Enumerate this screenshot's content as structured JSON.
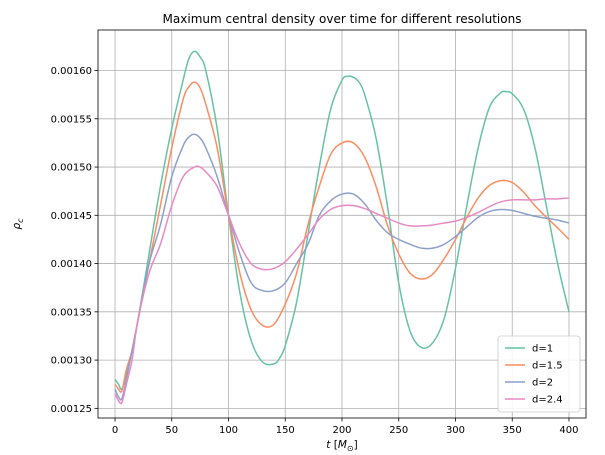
{
  "chart_data": {
    "type": "line",
    "title": "Maximum central density over time for different resolutions",
    "xlabel": "t [M⊙]",
    "xlabel_parts": {
      "var": "t",
      "unit_open": " [",
      "unit": "M",
      "unit_sub": "⊙",
      "unit_close": "]"
    },
    "ylabel": "ρc",
    "ylabel_parts": {
      "var": "ρ",
      "sub": "c"
    },
    "xlim": [
      -15,
      415
    ],
    "ylim": [
      0.00124,
      0.001642
    ],
    "xticks": [
      0,
      50,
      100,
      150,
      200,
      250,
      300,
      350,
      400
    ],
    "xtick_labels": [
      "0",
      "50",
      "100",
      "150",
      "200",
      "250",
      "300",
      "350",
      "400"
    ],
    "yticks": [
      0.00125,
      0.0013,
      0.00135,
      0.0014,
      0.00145,
      0.0015,
      0.00155,
      0.0016
    ],
    "ytick_labels": [
      "0.00125",
      "0.00130",
      "0.00135",
      "0.00140",
      "0.00145",
      "0.00150",
      "0.00155",
      "0.00160"
    ],
    "grid": true,
    "legend_position": "bottom-right",
    "series": [
      {
        "name": "d=1",
        "color": "#66c2a5",
        "x": [
          0,
          3,
          6,
          10,
          15,
          20,
          30,
          40,
          50,
          60,
          65,
          70,
          75,
          80,
          90,
          100,
          110,
          120,
          130,
          140,
          145,
          150,
          160,
          170,
          180,
          190,
          200,
          205,
          210,
          215,
          220,
          230,
          240,
          250,
          260,
          270,
          280,
          290,
          300,
          310,
          320,
          330,
          340,
          345,
          350,
          360,
          370,
          380,
          390,
          400
        ],
        "y": [
          0.00128,
          0.001275,
          0.00127,
          0.001285,
          0.00131,
          0.00134,
          0.00141,
          0.00148,
          0.00154,
          0.00159,
          0.001612,
          0.00162,
          0.001614,
          0.0016,
          0.00154,
          0.00145,
          0.00137,
          0.00132,
          0.001298,
          0.001296,
          0.001302,
          0.001315,
          0.00136,
          0.00143,
          0.0015,
          0.00156,
          0.00159,
          0.001594,
          0.001593,
          0.001588,
          0.001575,
          0.00153,
          0.00146,
          0.00138,
          0.00133,
          0.001313,
          0.001318,
          0.001343,
          0.001395,
          0.00146,
          0.00152,
          0.001562,
          0.001577,
          0.001578,
          0.001576,
          0.00156,
          0.00152,
          0.00146,
          0.0014,
          0.00135
        ]
      },
      {
        "name": "d=1.5",
        "color": "#fc8d62",
        "x": [
          0,
          3,
          6,
          10,
          15,
          20,
          30,
          40,
          50,
          60,
          65,
          70,
          75,
          80,
          90,
          100,
          110,
          120,
          130,
          140,
          150,
          160,
          170,
          180,
          190,
          200,
          210,
          220,
          230,
          240,
          250,
          260,
          270,
          280,
          290,
          300,
          310,
          320,
          330,
          340,
          350,
          360,
          370,
          380,
          390,
          400
        ],
        "y": [
          0.001275,
          0.00127,
          0.001268,
          0.00129,
          0.00131,
          0.00134,
          0.0014,
          0.00146,
          0.00152,
          0.00157,
          0.001583,
          0.001588,
          0.001582,
          0.001565,
          0.00152,
          0.00145,
          0.00139,
          0.001352,
          0.001336,
          0.001337,
          0.001358,
          0.00139,
          0.00144,
          0.00148,
          0.001513,
          0.001525,
          0.001525,
          0.00151,
          0.00148,
          0.00144,
          0.00141,
          0.00139,
          0.001384,
          0.001389,
          0.001405,
          0.001425,
          0.001448,
          0.001468,
          0.001481,
          0.001486,
          0.001484,
          0.001474,
          0.00146,
          0.001448,
          0.001437,
          0.001425
        ]
      },
      {
        "name": "d=2",
        "color": "#8da0cb",
        "x": [
          0,
          3,
          6,
          10,
          15,
          20,
          30,
          40,
          50,
          60,
          65,
          70,
          75,
          80,
          90,
          100,
          110,
          120,
          130,
          140,
          150,
          160,
          170,
          180,
          190,
          200,
          210,
          220,
          230,
          240,
          250,
          260,
          270,
          280,
          290,
          300,
          310,
          320,
          330,
          340,
          350,
          360,
          370,
          380,
          390,
          400
        ],
        "y": [
          0.00127,
          0.001262,
          0.00126,
          0.00128,
          0.00131,
          0.00134,
          0.0014,
          0.00144,
          0.00149,
          0.001522,
          0.001531,
          0.001534,
          0.00153,
          0.00152,
          0.00149,
          0.00145,
          0.00141,
          0.00138,
          0.001372,
          0.001372,
          0.00138,
          0.0014,
          0.00142,
          0.00145,
          0.001465,
          0.001472,
          0.001472,
          0.001462,
          0.001445,
          0.001432,
          0.001425,
          0.00142,
          0.001416,
          0.001416,
          0.00142,
          0.001428,
          0.001438,
          0.001448,
          0.001454,
          0.001456,
          0.001455,
          0.001452,
          0.001449,
          0.001447,
          0.001445,
          0.001442
        ]
      },
      {
        "name": "d=2.4",
        "color": "#e78ac3",
        "x": [
          0,
          3,
          6,
          10,
          15,
          20,
          30,
          40,
          50,
          60,
          70,
          75,
          80,
          90,
          100,
          110,
          120,
          130,
          140,
          150,
          160,
          170,
          180,
          190,
          200,
          210,
          220,
          230,
          240,
          250,
          260,
          270,
          280,
          290,
          300,
          310,
          320,
          330,
          340,
          350,
          360,
          370,
          380,
          390,
          400
        ],
        "y": [
          0.001265,
          0.001258,
          0.001256,
          0.001275,
          0.0013,
          0.00134,
          0.00139,
          0.00142,
          0.00146,
          0.00149,
          0.0015,
          0.0015,
          0.001495,
          0.00148,
          0.00145,
          0.00142,
          0.0014,
          0.001394,
          0.001395,
          0.001402,
          0.001415,
          0.00143,
          0.001446,
          0.001456,
          0.00146,
          0.00146,
          0.001457,
          0.001452,
          0.001447,
          0.001442,
          0.001439,
          0.001439,
          0.00144,
          0.001442,
          0.001444,
          0.001448,
          0.001453,
          0.001459,
          0.001464,
          0.001466,
          0.001466,
          0.001466,
          0.001467,
          0.001467,
          0.001468
        ]
      }
    ]
  }
}
